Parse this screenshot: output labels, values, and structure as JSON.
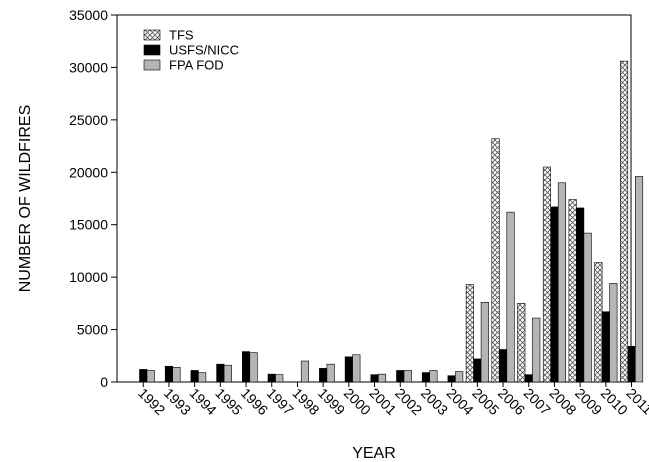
{
  "chart_data": {
    "type": "bar",
    "title": "",
    "xlabel": "YEAR",
    "ylabel": "NUMBER OF WILDFIRES",
    "ylim": [
      0,
      35000
    ],
    "yticks": [
      0,
      5000,
      10000,
      15000,
      20000,
      25000,
      30000,
      35000
    ],
    "grid": false,
    "legend_position": "top-left",
    "categories": [
      "1992",
      "1993",
      "1994",
      "1995",
      "1996",
      "1997",
      "1998",
      "1999",
      "2000",
      "2001",
      "2002",
      "2003",
      "2004",
      "2005",
      "2006",
      "2007",
      "2008",
      "2009",
      "2010",
      "2011"
    ],
    "series": [
      {
        "name": "TFS",
        "style": "crosshatch",
        "values": [
          null,
          null,
          null,
          null,
          null,
          null,
          null,
          null,
          null,
          null,
          null,
          null,
          null,
          9300,
          23200,
          7500,
          20500,
          17400,
          11400,
          30600
        ]
      },
      {
        "name": "USFS/NICC",
        "style": "solid",
        "color": "#000000",
        "values": [
          1200,
          1500,
          1100,
          1700,
          2900,
          750,
          0,
          1300,
          2400,
          700,
          1100,
          900,
          600,
          2200,
          3100,
          700,
          16700,
          16600,
          6700,
          3400
        ]
      },
      {
        "name": "FPA FOD",
        "style": "solid",
        "color": "#b5b5b5",
        "values": [
          1100,
          1400,
          900,
          1600,
          2800,
          700,
          2000,
          1700,
          2600,
          750,
          1100,
          1100,
          1000,
          7600,
          16200,
          6100,
          19000,
          14200,
          9400,
          19600
        ]
      }
    ]
  }
}
